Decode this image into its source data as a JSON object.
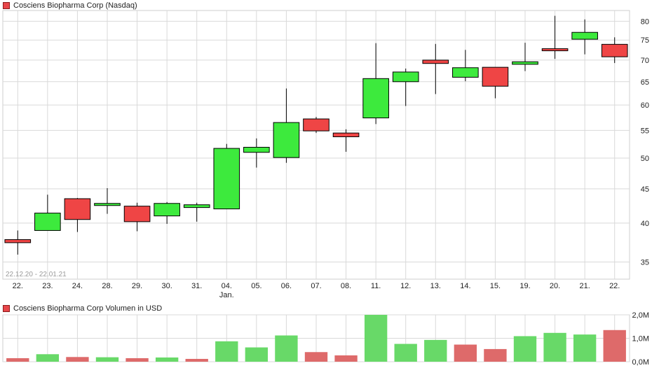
{
  "chart_data": [
    {
      "type": "candlestick",
      "title": "Cosciens Biopharma Corp (Nasdaq)",
      "date_range": "22.12.20 - 22.01.21",
      "categories": [
        "22.",
        "23.",
        "24.",
        "28.",
        "29.",
        "30.",
        "31.",
        "04.",
        "05.",
        "06.",
        "07.",
        "08.",
        "11.",
        "12.",
        "13.",
        "14.",
        "15.",
        "19.",
        "20.",
        "21.",
        "22."
      ],
      "month_label": {
        "text": "Jan.",
        "category_index": 7
      },
      "y_ticks": [
        35,
        40,
        45,
        50,
        55,
        60,
        65,
        70,
        75,
        80
      ],
      "ylim": [
        33,
        83
      ],
      "y_scale": "log",
      "grid": true,
      "colors": {
        "up": "#3dea3d",
        "down": "#ef4545",
        "wick": "#000000",
        "grid": "#d9d9d9"
      },
      "series": [
        {
          "values": [
            {
              "open": 37.8,
              "high": 39.0,
              "low": 35.9,
              "close": 37.4
            },
            {
              "open": 39.0,
              "high": 44.1,
              "low": 39.0,
              "close": 41.4
            },
            {
              "open": 43.5,
              "high": 43.6,
              "low": 38.8,
              "close": 40.5
            },
            {
              "open": 42.6,
              "high": 45.1,
              "low": 41.3,
              "close": 42.8
            },
            {
              "open": 42.4,
              "high": 42.9,
              "low": 38.9,
              "close": 40.2
            },
            {
              "open": 41.0,
              "high": 43.0,
              "low": 39.9,
              "close": 42.8
            },
            {
              "open": 42.2,
              "high": 42.9,
              "low": 40.2,
              "close": 42.6
            },
            {
              "open": 42.0,
              "high": 52.5,
              "low": 42.0,
              "close": 51.7
            },
            {
              "open": 51.0,
              "high": 53.5,
              "low": 48.4,
              "close": 51.9
            },
            {
              "open": 50.1,
              "high": 63.5,
              "low": 49.2,
              "close": 56.5
            },
            {
              "open": 57.2,
              "high": 57.6,
              "low": 54.5,
              "close": 54.9
            },
            {
              "open": 54.5,
              "high": 55.2,
              "low": 51.1,
              "close": 53.8
            },
            {
              "open": 57.4,
              "high": 74.2,
              "low": 56.2,
              "close": 65.7
            },
            {
              "open": 65.0,
              "high": 68.0,
              "low": 59.8,
              "close": 67.2
            },
            {
              "open": 70.0,
              "high": 74.0,
              "low": 62.3,
              "close": 69.2
            },
            {
              "open": 66.0,
              "high": 72.5,
              "low": 65.1,
              "close": 68.2
            },
            {
              "open": 68.3,
              "high": 68.3,
              "low": 61.4,
              "close": 64.0
            },
            {
              "open": 69.0,
              "high": 74.3,
              "low": 67.4,
              "close": 69.6
            },
            {
              "open": 72.8,
              "high": 81.5,
              "low": 70.3,
              "close": 72.6
            },
            {
              "open": 75.2,
              "high": 80.5,
              "low": 71.4,
              "close": 77.0
            },
            {
              "open": 73.9,
              "high": 75.7,
              "low": 69.3,
              "close": 70.8
            }
          ]
        }
      ]
    },
    {
      "type": "bar",
      "title": "Cosciens Biopharma Corp Volumen in USD",
      "categories": [
        "22.",
        "23.",
        "24.",
        "28.",
        "29.",
        "30.",
        "31.",
        "04.",
        "05.",
        "06.",
        "07.",
        "08.",
        "11.",
        "12.",
        "13.",
        "14.",
        "15.",
        "19.",
        "20.",
        "21.",
        "22."
      ],
      "y_ticks": [
        "0,0M",
        "1,0M",
        "2,0M"
      ],
      "ylim": [
        0,
        2.0
      ],
      "values": [
        0.15,
        0.32,
        0.2,
        0.19,
        0.15,
        0.18,
        0.12,
        0.87,
        0.61,
        1.12,
        0.41,
        0.27,
        2.0,
        0.76,
        0.93,
        0.73,
        0.54,
        1.09,
        1.23,
        1.16,
        1.35
      ],
      "directions": [
        "down",
        "up",
        "down",
        "up",
        "down",
        "up",
        "down",
        "up",
        "up",
        "up",
        "down",
        "down",
        "up",
        "up",
        "up",
        "down",
        "down",
        "up",
        "up",
        "up",
        "down"
      ],
      "colors": {
        "up": "#68d968",
        "down": "#de6a6a",
        "grid": "#d9d9d9"
      }
    }
  ]
}
